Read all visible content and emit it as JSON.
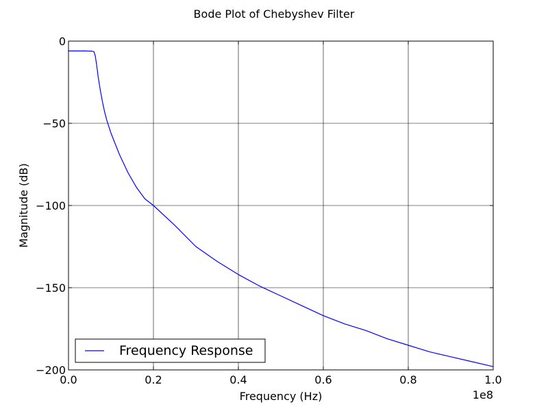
{
  "chart_data": {
    "type": "line",
    "title": "Bode Plot of Chebyshev Filter",
    "xlabel": "Frequency (Hz)",
    "ylabel": "Magnitude (dB)",
    "x_offset_text": "1e8",
    "xlim": [
      0,
      100000000
    ],
    "ylim": [
      -200,
      0
    ],
    "x_ticks": [
      0,
      20000000,
      40000000,
      60000000,
      80000000,
      100000000
    ],
    "x_tick_labels": [
      "0.0",
      "0.2",
      "0.4",
      "0.6",
      "0.8",
      "1.0"
    ],
    "y_ticks": [
      0,
      -50,
      -100,
      -150,
      -200
    ],
    "y_tick_labels": [
      "0",
      "−50",
      "−100",
      "−150",
      "−200"
    ],
    "grid": true,
    "legend_position": "lower-left",
    "series": [
      {
        "name": "Frequency Response",
        "color": "#0000ff",
        "x": [
          0,
          2000000,
          4000000,
          5500000,
          6000000,
          6300000,
          6600000,
          7000000,
          7500000,
          8000000,
          8500000,
          9000000,
          10000000,
          12000000,
          14000000,
          16000000,
          18000000,
          20000000,
          25000000,
          30000000,
          35000000,
          40000000,
          45000000,
          50000000,
          55000000,
          60000000,
          65000000,
          70000000,
          75000000,
          80000000,
          85000000,
          90000000,
          95000000,
          100000000
        ],
        "y": [
          -6,
          -6,
          -6,
          -6.1,
          -6.5,
          -9,
          -14,
          -22,
          -30,
          -37,
          -43,
          -48,
          -56,
          -69,
          -80,
          -89,
          -96,
          -100,
          -112,
          -125,
          -134,
          -142,
          -149,
          -155,
          -161,
          -167,
          -172,
          -176,
          -181,
          -185,
          -189,
          -192,
          -195,
          -198
        ]
      }
    ]
  }
}
